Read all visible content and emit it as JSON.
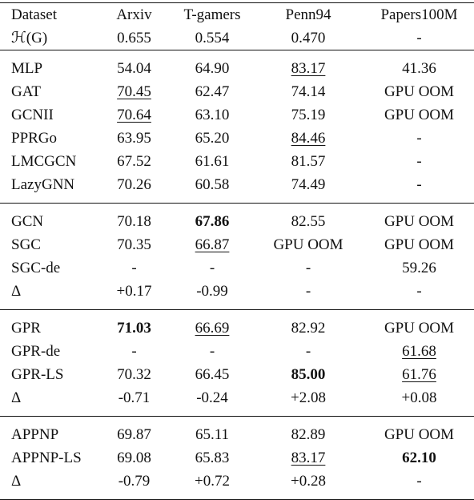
{
  "header": [
    [
      "Dataset",
      "Arxiv",
      "T-gamers",
      "Penn94",
      "Papers100M"
    ],
    [
      "ℋ(G)",
      "0.655",
      "0.554",
      "0.470",
      "-"
    ]
  ],
  "groups": [
    {
      "rows": [
        [
          "MLP",
          "54.04",
          "64.90",
          "83.17",
          "41.36"
        ],
        [
          "GAT",
          "70.45",
          "62.47",
          "74.14",
          "GPU OOM"
        ],
        [
          "GCNII",
          "70.64",
          "63.10",
          "75.19",
          "GPU OOM"
        ],
        [
          "PPRGo",
          "63.95",
          "65.20",
          "84.46",
          "-"
        ],
        [
          "LMCGCN",
          "67.52",
          "61.61",
          "81.57",
          "-"
        ],
        [
          "LazyGNN",
          "70.26",
          "60.58",
          "74.49",
          "-"
        ]
      ],
      "bold": [],
      "underline": [
        [
          0,
          3
        ],
        [
          1,
          1
        ],
        [
          2,
          1
        ],
        [
          3,
          3
        ]
      ]
    },
    {
      "rows": [
        [
          "GCN",
          "70.18",
          "67.86",
          "82.55",
          "GPU OOM"
        ],
        [
          "SGC",
          "70.35",
          "66.87",
          "GPU OOM",
          "GPU OOM"
        ],
        [
          "SGC-de",
          "-",
          "-",
          "-",
          "59.26"
        ],
        [
          "Δ",
          "+0.17",
          "-0.99",
          "-",
          "-"
        ]
      ],
      "bold": [
        [
          0,
          2
        ]
      ],
      "underline": [
        [
          1,
          2
        ]
      ]
    },
    {
      "rows": [
        [
          "GPR",
          "71.03",
          "66.69",
          "82.92",
          "GPU OOM"
        ],
        [
          "GPR-de",
          "-",
          "-",
          "-",
          "61.68"
        ],
        [
          "GPR-LS",
          "70.32",
          "66.45",
          "85.00",
          "61.76"
        ],
        [
          "Δ",
          "-0.71",
          "-0.24",
          "+2.08",
          "+0.08"
        ]
      ],
      "bold": [
        [
          0,
          1
        ],
        [
          2,
          3
        ]
      ],
      "underline": [
        [
          0,
          2
        ],
        [
          1,
          4
        ],
        [
          2,
          4
        ]
      ]
    },
    {
      "rows": [
        [
          "APPNP",
          "69.87",
          "65.11",
          "82.89",
          "GPU OOM"
        ],
        [
          "APPNP-LS",
          "69.08",
          "65.83",
          "83.17",
          "62.10"
        ],
        [
          "Δ",
          "-0.79",
          "+0.72",
          "+0.28",
          "-"
        ]
      ],
      "bold": [
        [
          1,
          4
        ]
      ],
      "underline": [
        [
          1,
          3
        ]
      ]
    }
  ]
}
